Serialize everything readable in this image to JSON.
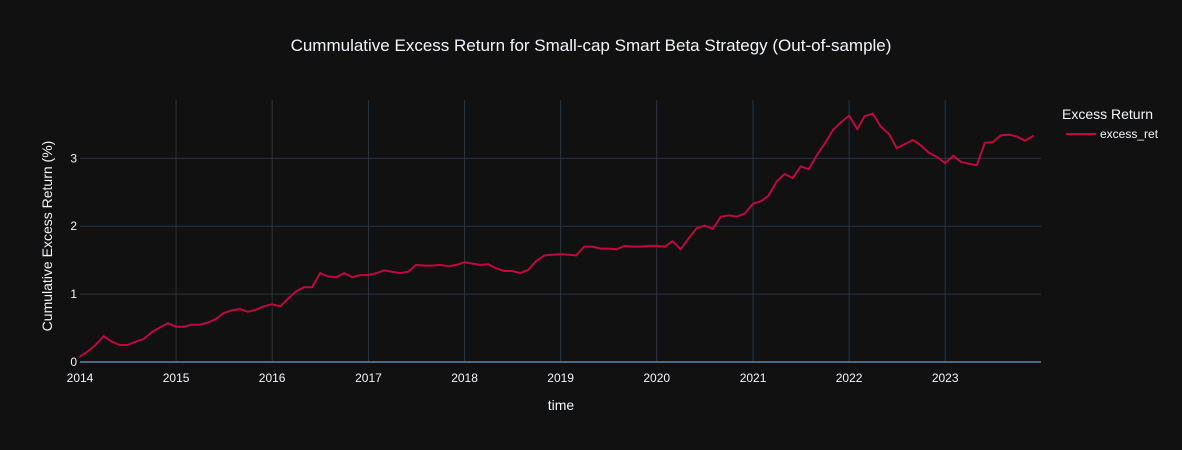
{
  "chart_data": {
    "type": "line",
    "title": "Cummulative Excess Return for Small-cap Smart Beta Strategy (Out-of-sample)",
    "xlabel": "time",
    "ylabel": "Cumulative Excess Return (%)",
    "x_ticks": [
      "2014",
      "2015",
      "2016",
      "2017",
      "2018",
      "2019",
      "2020",
      "2021",
      "2022",
      "2023"
    ],
    "y_ticks": [
      "0",
      "1",
      "2",
      "3"
    ],
    "x_range": [
      "2014-01-01",
      "2023-12-31"
    ],
    "ylim": [
      0,
      3.86
    ],
    "grid": true,
    "legend": {
      "title": "Excess Return",
      "position": "top-right"
    },
    "series": [
      {
        "name": "excess_ret",
        "color": "#c0093e",
        "x": [
          "2014-01",
          "2014-02",
          "2014-03",
          "2014-04",
          "2014-05",
          "2014-06",
          "2014-07",
          "2014-08",
          "2014-09",
          "2014-10",
          "2014-11",
          "2014-12",
          "2015-01",
          "2015-02",
          "2015-03",
          "2015-04",
          "2015-05",
          "2015-06",
          "2015-07",
          "2015-08",
          "2015-09",
          "2015-10",
          "2015-11",
          "2015-12",
          "2016-01",
          "2016-02",
          "2016-03",
          "2016-04",
          "2016-05",
          "2016-06",
          "2016-07",
          "2016-08",
          "2016-09",
          "2016-10",
          "2016-11",
          "2016-12",
          "2017-01",
          "2017-02",
          "2017-03",
          "2017-04",
          "2017-05",
          "2017-06",
          "2017-07",
          "2017-08",
          "2017-09",
          "2017-10",
          "2017-11",
          "2017-12",
          "2018-01",
          "2018-02",
          "2018-03",
          "2018-04",
          "2018-05",
          "2018-06",
          "2018-07",
          "2018-08",
          "2018-09",
          "2018-10",
          "2018-11",
          "2018-12",
          "2019-01",
          "2019-02",
          "2019-03",
          "2019-04",
          "2019-05",
          "2019-06",
          "2019-07",
          "2019-08",
          "2019-09",
          "2019-10",
          "2019-11",
          "2019-12",
          "2020-01",
          "2020-02",
          "2020-03",
          "2020-04",
          "2020-05",
          "2020-06",
          "2020-07",
          "2020-08",
          "2020-09",
          "2020-10",
          "2020-11",
          "2020-12",
          "2021-01",
          "2021-02",
          "2021-03",
          "2021-04",
          "2021-05",
          "2021-06",
          "2021-07",
          "2021-08",
          "2021-09",
          "2021-10",
          "2021-11",
          "2021-12",
          "2022-01",
          "2022-02",
          "2022-03",
          "2022-04",
          "2022-05",
          "2022-06",
          "2022-07",
          "2022-08",
          "2022-09",
          "2022-10",
          "2022-11",
          "2022-12",
          "2023-01",
          "2023-02",
          "2023-03",
          "2023-04",
          "2023-05",
          "2023-06",
          "2023-07",
          "2023-08",
          "2023-09",
          "2023-10",
          "2023-11",
          "2023-12"
        ],
        "values": [
          0.08,
          0.16,
          0.25,
          0.38,
          0.3,
          0.25,
          0.25,
          0.3,
          0.34,
          0.44,
          0.51,
          0.57,
          0.52,
          0.52,
          0.55,
          0.55,
          0.58,
          0.63,
          0.72,
          0.76,
          0.78,
          0.74,
          0.77,
          0.82,
          0.85,
          0.82,
          0.93,
          1.04,
          1.1,
          1.1,
          1.31,
          1.26,
          1.25,
          1.31,
          1.25,
          1.28,
          1.28,
          1.31,
          1.35,
          1.33,
          1.31,
          1.33,
          1.43,
          1.42,
          1.42,
          1.43,
          1.41,
          1.43,
          1.47,
          1.45,
          1.43,
          1.44,
          1.38,
          1.34,
          1.34,
          1.31,
          1.36,
          1.49,
          1.57,
          1.58,
          1.59,
          1.58,
          1.57,
          1.7,
          1.7,
          1.67,
          1.67,
          1.66,
          1.71,
          1.7,
          1.7,
          1.71,
          1.71,
          1.7,
          1.78,
          1.66,
          1.82,
          1.97,
          2.01,
          1.96,
          2.14,
          2.16,
          2.14,
          2.19,
          2.33,
          2.37,
          2.45,
          2.66,
          2.77,
          2.71,
          2.88,
          2.84,
          3.05,
          3.22,
          3.42,
          3.53,
          3.63,
          3.43,
          3.62,
          3.66,
          3.47,
          3.36,
          3.15,
          3.21,
          3.27,
          3.19,
          3.08,
          3.02,
          2.93,
          3.04,
          2.95,
          2.92,
          2.9,
          3.23,
          3.24,
          3.34,
          3.35,
          3.32,
          3.26,
          3.33
        ]
      }
    ]
  }
}
